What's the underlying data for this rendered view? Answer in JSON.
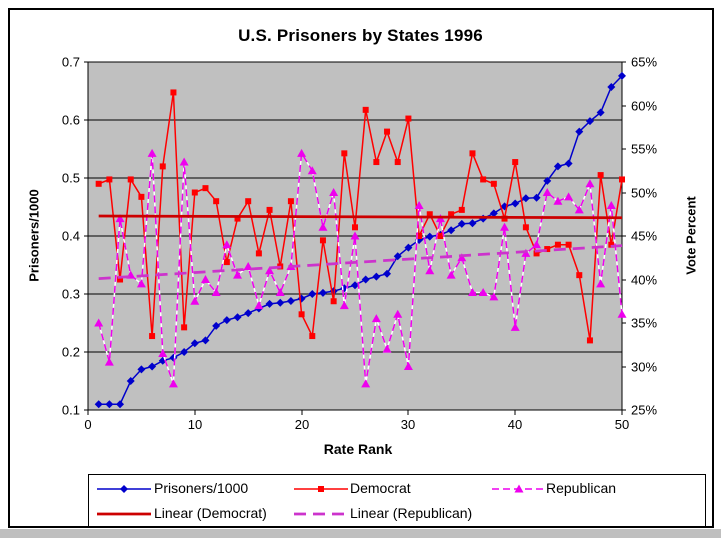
{
  "window": {
    "bg_color": "#FFFFFF",
    "frame_color": "#000000",
    "bottom_strip_color": "#BFBFBF"
  },
  "chart_data": {
    "type": "line",
    "title": "U.S. Prisoners by States 1996",
    "plot_bg": "#C0C0C0",
    "grid": true,
    "legend_position": "bottom",
    "x_axis": {
      "title": "Rate Rank",
      "min": 0,
      "max": 50,
      "tick_values": [
        0,
        10,
        20,
        30,
        40,
        50
      ],
      "tick_labels": [
        "0",
        "10",
        "20",
        "30",
        "40",
        "50"
      ]
    },
    "left_axis": {
      "title": "Prisoners/1000",
      "min": 0.1,
      "max": 0.7,
      "tick_step": 0.1,
      "tick_values": [
        0.1,
        0.2,
        0.3,
        0.4,
        0.5,
        0.6,
        0.7
      ],
      "tick_labels": [
        "0.1",
        "0.2",
        "0.3",
        "0.4",
        "0.5",
        "0.6",
        "0.7"
      ]
    },
    "right_axis": {
      "title": "Vote Percent",
      "min": 25,
      "max": 65,
      "tick_step": 5,
      "tick_values": [
        25,
        30,
        35,
        40,
        45,
        50,
        55,
        60,
        65
      ],
      "tick_labels": [
        "25%",
        "30%",
        "35%",
        "40%",
        "45%",
        "50%",
        "55%",
        "60%",
        "65%"
      ]
    },
    "x": [
      1,
      2,
      3,
      4,
      5,
      6,
      7,
      8,
      9,
      10,
      11,
      12,
      13,
      14,
      15,
      16,
      17,
      18,
      19,
      20,
      21,
      22,
      23,
      24,
      25,
      26,
      27,
      28,
      29,
      30,
      31,
      32,
      33,
      34,
      35,
      36,
      37,
      38,
      39,
      40,
      41,
      42,
      43,
      44,
      45,
      46,
      47,
      48,
      49,
      50
    ],
    "series": [
      {
        "name": "Prisoners/1000",
        "axis": "left",
        "type": "line",
        "color": "#0000CC",
        "marker": "diamond",
        "dash": null,
        "width": 1.5,
        "values": [
          0.11,
          0.11,
          0.11,
          0.15,
          0.17,
          0.175,
          0.185,
          0.19,
          0.2,
          0.215,
          0.22,
          0.245,
          0.255,
          0.26,
          0.267,
          0.275,
          0.283,
          0.285,
          0.288,
          0.292,
          0.3,
          0.302,
          0.305,
          0.31,
          0.315,
          0.325,
          0.33,
          0.335,
          0.365,
          0.38,
          0.393,
          0.399,
          0.402,
          0.41,
          0.421,
          0.422,
          0.43,
          0.439,
          0.451,
          0.456,
          0.465,
          0.466,
          0.495,
          0.52,
          0.525,
          0.58,
          0.598,
          0.613,
          0.657,
          0.676
        ]
      },
      {
        "name": "Democrat",
        "axis": "right",
        "type": "line",
        "color": "#FF0000",
        "marker": "square",
        "dash": null,
        "width": 1.5,
        "values": [
          51,
          51.5,
          40,
          51.5,
          49.5,
          33.5,
          53,
          61.5,
          34.5,
          50,
          50.5,
          49,
          42,
          47,
          49,
          43,
          48,
          41.5,
          49,
          36,
          33.5,
          44.5,
          37.5,
          54.5,
          46,
          59.5,
          53.5,
          57,
          53.5,
          58.5,
          45,
          47.5,
          45,
          47.5,
          48,
          54.5,
          51.5,
          51,
          47,
          53.5,
          46,
          43,
          43.5,
          44,
          44,
          40.5,
          33,
          52,
          44,
          51.5
        ]
      },
      {
        "name": "Republican",
        "axis": "right",
        "type": "line",
        "color": "#EE00EE",
        "marker": "triangle",
        "dash": "7,4",
        "dash_bg": "#FFFFFF",
        "width": 1.5,
        "values": [
          35,
          30.5,
          47,
          40.5,
          39.5,
          54.5,
          31.5,
          28,
          53.5,
          37.5,
          40,
          38.5,
          44,
          40.5,
          41.5,
          37,
          41,
          38.5,
          41.5,
          54.5,
          52.5,
          46,
          50,
          37,
          45,
          28,
          35.5,
          32,
          36,
          30,
          48.5,
          41,
          47,
          40.5,
          42.5,
          38.5,
          38.5,
          38,
          46,
          34.5,
          43,
          44,
          50,
          49,
          49.5,
          48,
          51,
          39.5,
          48.5,
          36
        ]
      },
      {
        "name": "Linear (Democrat)",
        "axis": "right",
        "type": "trend",
        "color": "#CC0000",
        "marker": null,
        "dash": null,
        "width": 2.75,
        "x": [
          1,
          50
        ],
        "values": [
          47.3,
          47.1
        ]
      },
      {
        "name": "Linear (Republican)",
        "axis": "right",
        "type": "trend",
        "color": "#CC33CC",
        "marker": null,
        "dash": "12,7",
        "width": 2.75,
        "x": [
          1,
          50
        ],
        "values": [
          40.1,
          43.9
        ]
      }
    ],
    "legend": {
      "rows": [
        [
          "Prisoners/1000",
          "Democrat",
          "Republican"
        ],
        [
          "Linear (Democrat)",
          "Linear (Republican)"
        ]
      ]
    }
  }
}
